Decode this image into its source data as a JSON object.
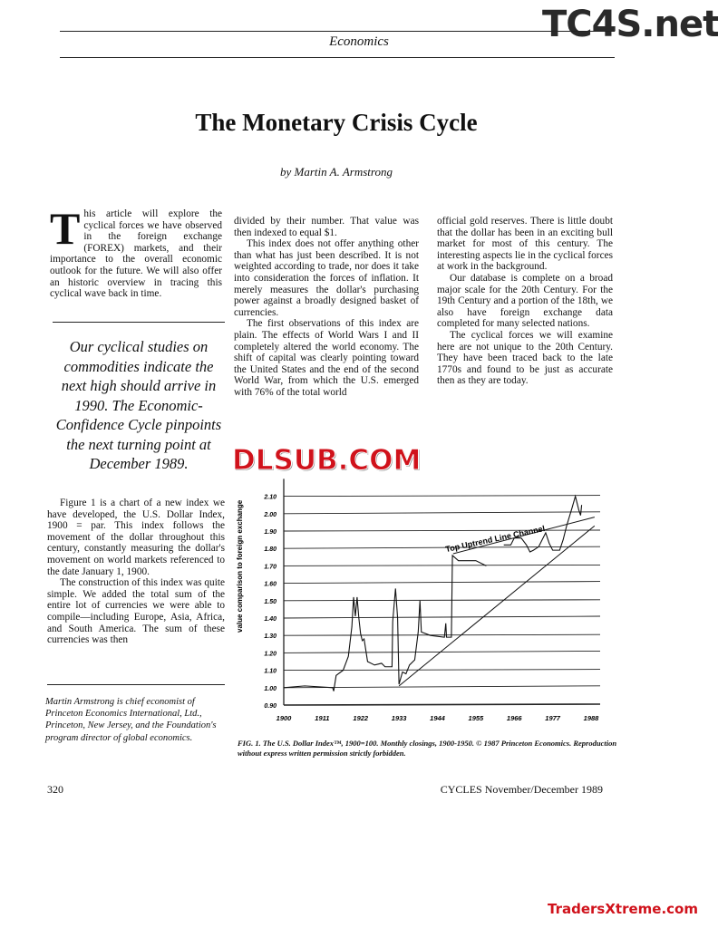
{
  "watermarks": {
    "top_right": "TC4S.net",
    "middle": "DLSUB.COM",
    "bottom_right": "TradersXtreme.com"
  },
  "header": {
    "section": "Economics"
  },
  "article": {
    "title": "The Monetary Crisis Cycle",
    "byline": "by Martin A. Armstrong",
    "intro_dropcap": "T",
    "intro": "his article will explore the cyclical forces we have observed in the foreign exchange (FOREX) markets, and their importance to the overall economic outlook for the future. We will also offer an historic overview in tracing this cyclical wave back in time.",
    "pull_quote": "Our cyclical studies on commodities indicate the next high should arrive in 1990. The Economic-Confidence Cycle pinpoints the next turning point at December 1989.",
    "col1_paragraphs": [
      "Figure 1 is a chart of a new index we have developed, the U.S. Dollar Index, 1900 = par. This index follows the movement of the dollar throughout this century, constantly measuring the dollar's movement on world markets referenced to the date January 1, 1900.",
      "The construction of this index was quite simple. We added the total sum of the entire lot of currencies we were able to compile—including Europe, Asia, Africa, and South America. The sum of these currencies was then"
    ],
    "col2_paragraphs": [
      "divided by their number. That value was then indexed to equal $1.",
      "This index does not offer anything other than what has just been described. It is not weighted according to trade, nor does it take into consideration the forces of inflation. It merely measures the dollar's purchasing power against a broadly designed basket of currencies.",
      "The first observations of this index are plain. The effects of World Wars I and II completely altered the world economy. The shift of capital was clearly pointing toward the United States and the end of the second World War, from which the U.S. emerged with 76% of the total world"
    ],
    "col3_paragraphs": [
      "official gold reserves. There is little doubt that the dollar has been in an exciting bull market for most of this century. The interesting aspects lie in the cyclical forces at work in the background.",
      "Our database is complete on a broad major scale for the 20th Century. For the 19th Century and a portion of the 18th, we also have foreign exchange data completed for many selected nations.",
      "The cyclical forces we will examine here are not unique to the 20th Century. They have been traced back to the late 1770s and found to be just as accurate then as they are today."
    ],
    "bio": "Martin Armstrong is chief economist of Princeton Economics International, Ltd., Princeton, New Jersey, and the Foundation's program director of global economics.",
    "figure_caption": "FIG. 1. The U.S. Dollar Index™, 1900=100. Monthly closings, 1900-1950. © 1987 Princeton Economics. Reproduction without express written permission strictly forbidden."
  },
  "footer": {
    "page_number": "320",
    "publication": "CYCLES  November/December 1989"
  },
  "chart_data": {
    "type": "line",
    "ylabel": "value comparison to foreign exchange",
    "xlabel": "",
    "y_ticks": [
      "0.90",
      "1.00",
      "1.10",
      "1.20",
      "1.30",
      "1.40",
      "1.50",
      "1.60",
      "1.70",
      "1.80",
      "1.90",
      "2.00",
      "2.10"
    ],
    "x_ticks": [
      "1900",
      "1911",
      "1922",
      "1933",
      "1944",
      "1955",
      "1966",
      "1977",
      "1988"
    ],
    "xlim": [
      1900,
      1989
    ],
    "ylim": [
      0.9,
      2.2
    ],
    "grid": "horizontal",
    "annotation": "Top Uptrend Line Channel",
    "series": [
      {
        "segment": 1,
        "points": [
          [
            1900,
            1.0
          ],
          [
            1906,
            1.01
          ],
          [
            1914,
            1.0
          ],
          [
            1914.3,
            0.98
          ],
          [
            1915,
            1.07
          ],
          [
            1917,
            1.1
          ],
          [
            1918.5,
            1.18
          ],
          [
            1919.5,
            1.35
          ],
          [
            1920,
            1.52
          ],
          [
            1920.5,
            1.41
          ],
          [
            1921,
            1.52
          ],
          [
            1921.5,
            1.4
          ],
          [
            1922,
            1.31
          ],
          [
            1922.5,
            1.27
          ],
          [
            1923,
            1.28
          ],
          [
            1924,
            1.15
          ],
          [
            1926,
            1.13
          ],
          [
            1928,
            1.14
          ],
          [
            1929,
            1.12
          ],
          [
            1931,
            1.12
          ],
          [
            1931.2,
            1.38
          ],
          [
            1932,
            1.57
          ],
          [
            1932.6,
            1.4
          ],
          [
            1933,
            1.02
          ],
          [
            1934,
            1.09
          ],
          [
            1935,
            1.08
          ],
          [
            1936,
            1.13
          ],
          [
            1937.5,
            1.16
          ],
          [
            1938.5,
            1.32
          ],
          [
            1939,
            1.5
          ],
          [
            1939.4,
            1.32
          ],
          [
            1942,
            1.3
          ],
          [
            1946,
            1.29
          ],
          [
            1946.4,
            1.37
          ],
          [
            1946.6,
            1.29
          ],
          [
            1948,
            1.29
          ],
          [
            1948.3,
            1.76
          ],
          [
            1950,
            1.73
          ],
          [
            1955,
            1.73
          ],
          [
            1958,
            1.7
          ]
        ]
      },
      {
        "segment": 2,
        "points": [
          [
            1963,
            1.82
          ],
          [
            1965,
            1.82
          ],
          [
            1966,
            1.86
          ],
          [
            1968,
            1.86
          ],
          [
            1969.5,
            1.82
          ],
          [
            1970.5,
            1.78
          ],
          [
            1971.5,
            1.79
          ],
          [
            1973,
            1.81
          ],
          [
            1975,
            1.89
          ],
          [
            1976,
            1.83
          ],
          [
            1977,
            1.79
          ],
          [
            1979,
            1.79
          ],
          [
            1980,
            1.85
          ],
          [
            1981,
            1.93
          ],
          [
            1982.5,
            2.03
          ],
          [
            1983.5,
            2.1
          ],
          [
            1984.5,
            2.02
          ],
          [
            1985,
            1.99
          ],
          [
            1985.3,
            2.05
          ]
        ]
      }
    ],
    "trendlines": [
      {
        "name": "Top Uptrend Line Channel",
        "points": [
          [
            1948.5,
            1.77
          ],
          [
            1989,
            1.98
          ]
        ]
      },
      {
        "points": [
          [
            1933,
            1.01
          ],
          [
            1989,
            1.93
          ]
        ]
      }
    ]
  }
}
